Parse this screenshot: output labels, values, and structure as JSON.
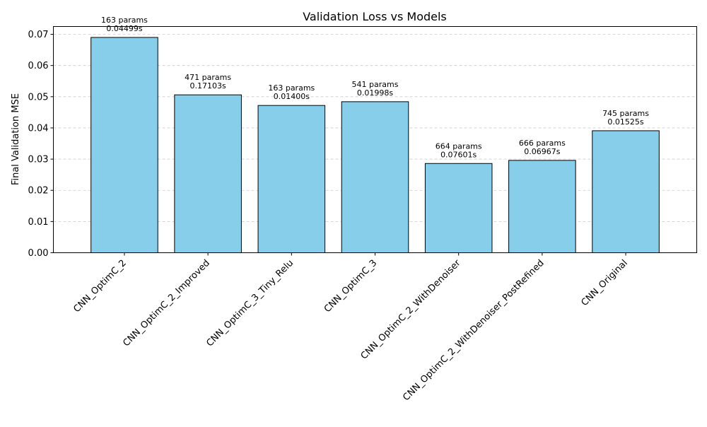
{
  "chart_data": {
    "type": "bar",
    "title": "Validation Loss vs Models",
    "xlabel": "",
    "ylabel": "Final Validation MSE",
    "ylim": [
      0,
      0.0725
    ],
    "yticks": [
      "0.00",
      "0.01",
      "0.02",
      "0.03",
      "0.04",
      "0.05",
      "0.06",
      "0.07"
    ],
    "grid": "y-dashed",
    "bar_color": "#87ceeb",
    "edge_color": "#000000",
    "grid_color": "#cccccc",
    "categories": [
      "CNN_OptimC_2",
      "CNN_OptimC_2_Improved",
      "CNN_OptimC_3_Tiny_Relu",
      "CNN_OptimC_3",
      "CNN_OptimC_2_WithDenoiser",
      "CNN_OptimC_2_WithDenoiser_PostRefined",
      "CNN_Original"
    ],
    "values": [
      0.069,
      0.0506,
      0.0472,
      0.0484,
      0.0286,
      0.0296,
      0.0391
    ],
    "annotations": [
      [
        "163 params",
        "0.04499s"
      ],
      [
        "471 params",
        "0.17103s"
      ],
      [
        "163 params",
        "0.01400s"
      ],
      [
        "541 params",
        "0.01998s"
      ],
      [
        "664 params",
        "0.07601s"
      ],
      [
        "666 params",
        "0.06967s"
      ],
      [
        "745 params",
        "0.01525s"
      ]
    ]
  }
}
